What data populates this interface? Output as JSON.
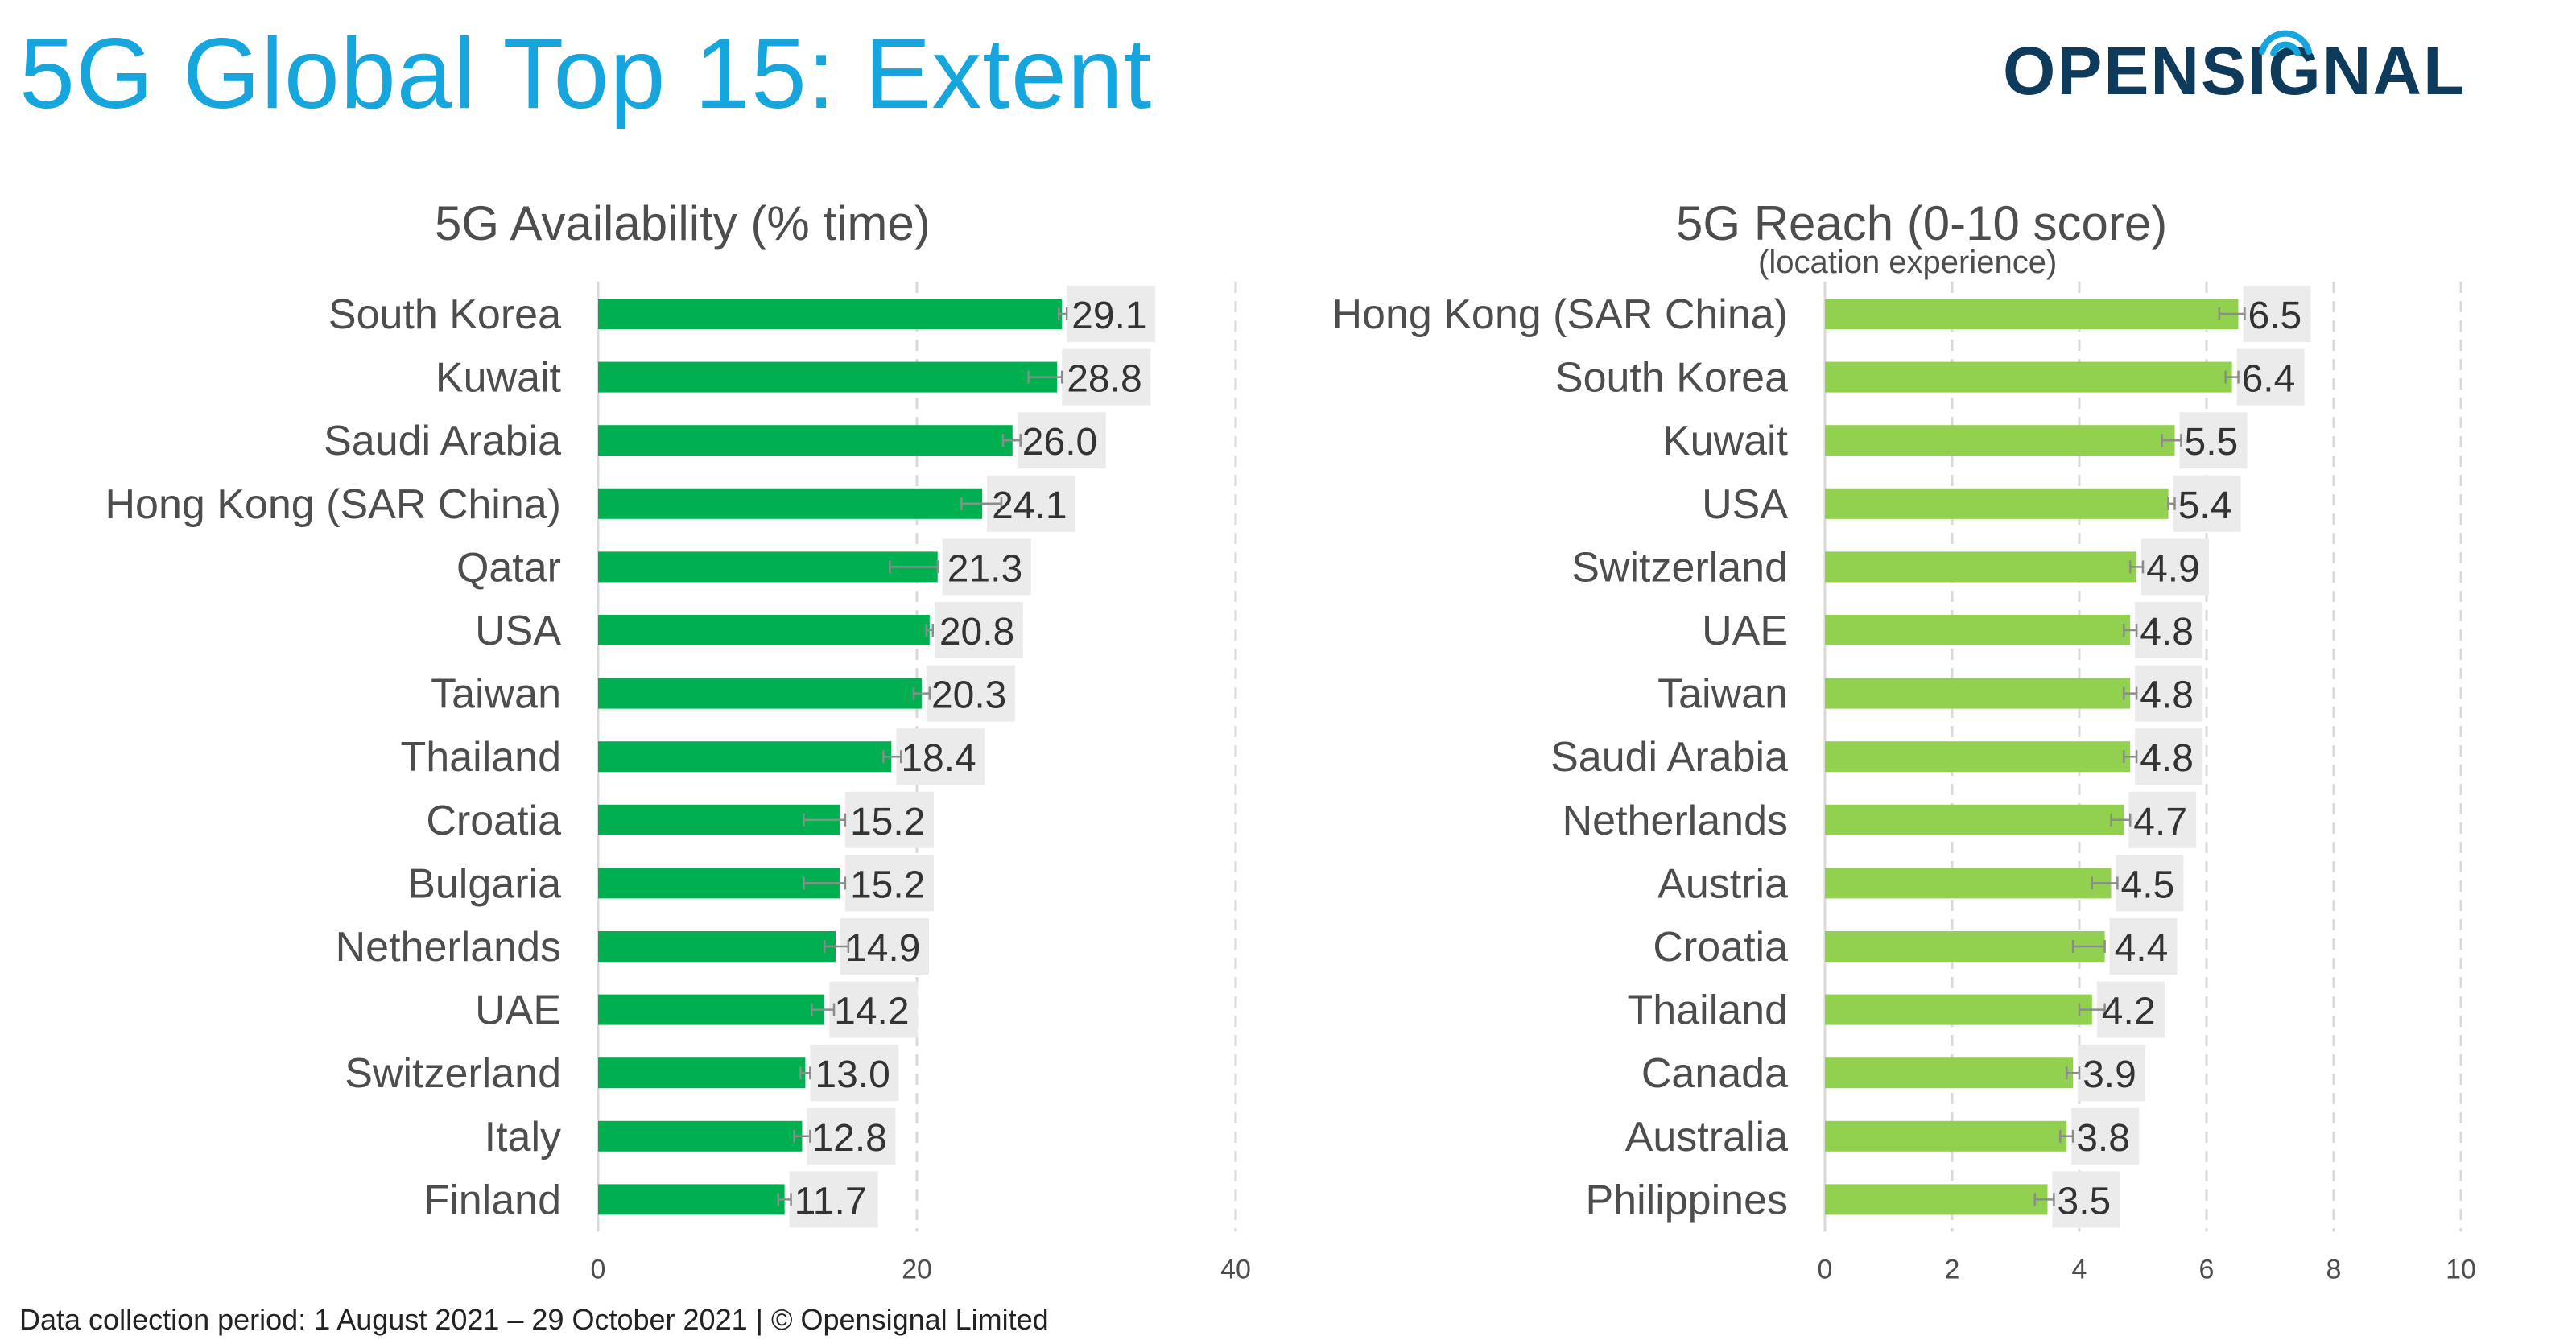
{
  "page": {
    "title": "5G Global Top 15: Extent",
    "logo_text": "OPENSIGNAL",
    "footer": "Data collection period: 1 August 2021 – 29 October 2021  |  © Opensignal Limited"
  },
  "colors": {
    "title": "#16a5dc",
    "availability_bar": "#00b050",
    "reach_bar": "#92d050",
    "label_box": "#ebebeb",
    "text": "#4d4d4d",
    "logo": "#0e3a5b",
    "logo_signal": "#16a5dc"
  },
  "chart_data": [
    {
      "type": "bar",
      "orientation": "horizontal",
      "title": "5G Availability (% time)",
      "subtitle": "",
      "xlim": [
        0,
        40
      ],
      "xticks": [
        0,
        20,
        40
      ],
      "grid": true,
      "categories": [
        "South Korea",
        "Kuwait",
        "Saudi Arabia",
        "Hong Kong (SAR China)",
        "Qatar",
        "USA",
        "Taiwan",
        "Thailand",
        "Croatia",
        "Bulgaria",
        "Netherlands",
        "UAE",
        "Switzerland",
        "Italy",
        "Finland"
      ],
      "values": [
        29.1,
        28.8,
        26.0,
        24.1,
        21.3,
        20.8,
        20.3,
        18.4,
        15.2,
        15.2,
        14.9,
        14.2,
        13.0,
        12.8,
        11.7
      ],
      "labels": [
        "29.1",
        "28.8",
        "26.0",
        "24.1",
        "21.3",
        "20.8",
        "20.3",
        "18.4",
        "15.2",
        "15.2",
        "14.9",
        "14.2",
        "13.0",
        "12.8",
        "11.7"
      ],
      "error_low": [
        28.9,
        27.0,
        25.4,
        22.8,
        18.3,
        20.6,
        19.8,
        17.9,
        12.9,
        12.9,
        14.2,
        13.4,
        12.7,
        12.3,
        11.3
      ],
      "error_high": [
        29.4,
        29.1,
        26.5,
        25.3,
        21.3,
        21.0,
        20.8,
        19.0,
        15.5,
        15.5,
        15.7,
        14.8,
        13.3,
        13.3,
        12.1
      ]
    },
    {
      "type": "bar",
      "orientation": "horizontal",
      "title": "5G Reach (0-10 score)",
      "subtitle": "(location experience)",
      "xlim": [
        0,
        10
      ],
      "xticks": [
        0,
        2,
        4,
        6,
        8,
        10
      ],
      "grid": true,
      "categories": [
        "Hong Kong (SAR China)",
        "South Korea",
        "Kuwait",
        "USA",
        "Switzerland",
        "UAE",
        "Taiwan",
        "Saudi Arabia",
        "Netherlands",
        "Austria",
        "Croatia",
        "Thailand",
        "Canada",
        "Australia",
        "Philippines"
      ],
      "values": [
        6.5,
        6.4,
        5.5,
        5.4,
        4.9,
        4.8,
        4.8,
        4.8,
        4.7,
        4.5,
        4.4,
        4.2,
        3.9,
        3.8,
        3.5
      ],
      "labels": [
        "6.5",
        "6.4",
        "5.5",
        "5.4",
        "4.9",
        "4.8",
        "4.8",
        "4.8",
        "4.7",
        "4.5",
        "4.4",
        "4.2",
        "3.9",
        "3.8",
        "3.5"
      ],
      "error_low": [
        6.2,
        6.3,
        5.3,
        5.4,
        4.8,
        4.7,
        4.7,
        4.7,
        4.5,
        4.2,
        3.9,
        4.0,
        3.8,
        3.7,
        3.3
      ],
      "error_high": [
        6.6,
        6.5,
        5.6,
        5.5,
        5.0,
        4.9,
        4.9,
        4.9,
        4.8,
        4.6,
        4.4,
        4.4,
        4.0,
        3.9,
        3.6
      ]
    }
  ]
}
